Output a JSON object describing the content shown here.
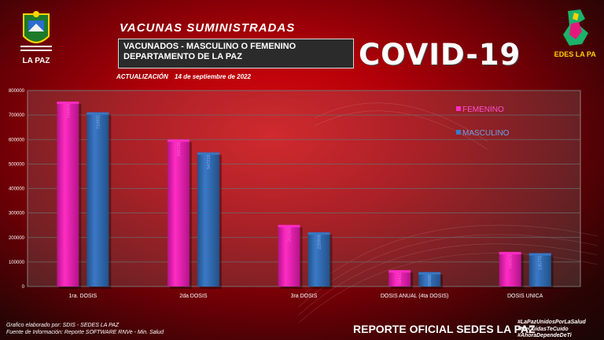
{
  "header": {
    "title": "VACUNAS SUMINISTRADAS",
    "subtitle_line1": "VACUNADOS - MASCULINO O FEMENINO",
    "subtitle_line2": "DEPARTAMENTO DE LA PAZ",
    "covid": "COVID-19",
    "update_label": "ACTUALIZACIÓN",
    "update_date": "14 de septiembre de 2022"
  },
  "logos": {
    "left_text": "LA PAZ",
    "right_text": "SEDES LA PAZ"
  },
  "footer": {
    "credit": "Grafico elaborado por: SDIS - SEDES LA PAZ",
    "source": "Fuente de Información: Reporte SOFTWARE RNVe - Min. Salud",
    "report": "REPORTE OFICIAL SEDES LA PAZ",
    "hashtag1": "#LaPazUnidosPorLaSalud",
    "hashtag2": "#MeCuidasTeCuido",
    "hashtag3": "#AhoraDependeDeTi"
  },
  "colors": {
    "femenino": "#ff2cc4",
    "masculino": "#3b79c6"
  },
  "chart_data": {
    "type": "bar",
    "categories": [
      "1ra. DOSIS",
      "2da DOSIS",
      "3ra DOSIS",
      "DOSIS ANUAL (4ta DOSIS)",
      "DOSIS UNICA"
    ],
    "series": [
      {
        "name": "FEMENINO",
        "values": [
          754863,
          600135,
          251263,
          66431,
          140823
        ],
        "labels": [
          "754863",
          "600135",
          "251263",
          "66431",
          "140823"
        ]
      },
      {
        "name": "MASCULINO",
        "values": [
          710931,
          547219,
          220908,
          58488,
          135775
        ],
        "labels": [
          "710931",
          "547219",
          "220908",
          "58488",
          "135775"
        ]
      }
    ],
    "ylim": [
      0,
      800000
    ],
    "yticks": [
      "0",
      "100000",
      "200000",
      "300000",
      "400000",
      "500000",
      "600000",
      "700000",
      "800000"
    ],
    "grid": true,
    "legend": "top-right"
  }
}
